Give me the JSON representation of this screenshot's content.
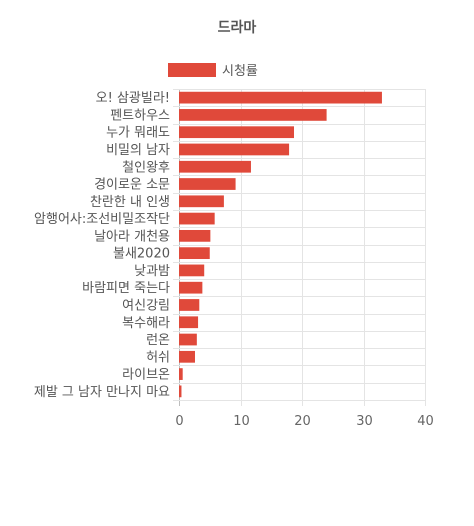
{
  "chart_data": {
    "type": "bar",
    "orientation": "horizontal",
    "title": "드라마",
    "legend_position": "top",
    "bar_color": "#e0493a",
    "categories": [
      "오! 삼광빌라!",
      "펜트하우스",
      "누가 뭐래도",
      "비밀의 남자",
      "철인왕후",
      "경이로운 소문",
      "찬란한 내 인생",
      "암행어사:조선비밀조작단",
      "날아라 개천용",
      "불새2020",
      "낮과밤",
      "바람피면 죽는다",
      "여신강림",
      "복수해라",
      "런온",
      "허쉬",
      "라이브온",
      "제발 그 남자 만나지 마요"
    ],
    "series": [
      {
        "name": "시청률",
        "values": [
          33.0,
          24.0,
          18.7,
          17.9,
          11.7,
          9.2,
          7.3,
          5.8,
          5.1,
          5.0,
          4.1,
          3.8,
          3.3,
          3.1,
          2.9,
          2.6,
          0.6,
          0.4
        ]
      }
    ],
    "xlim": [
      0,
      40
    ],
    "xticks": [
      0,
      10,
      20,
      30,
      40
    ],
    "grid": true
  }
}
